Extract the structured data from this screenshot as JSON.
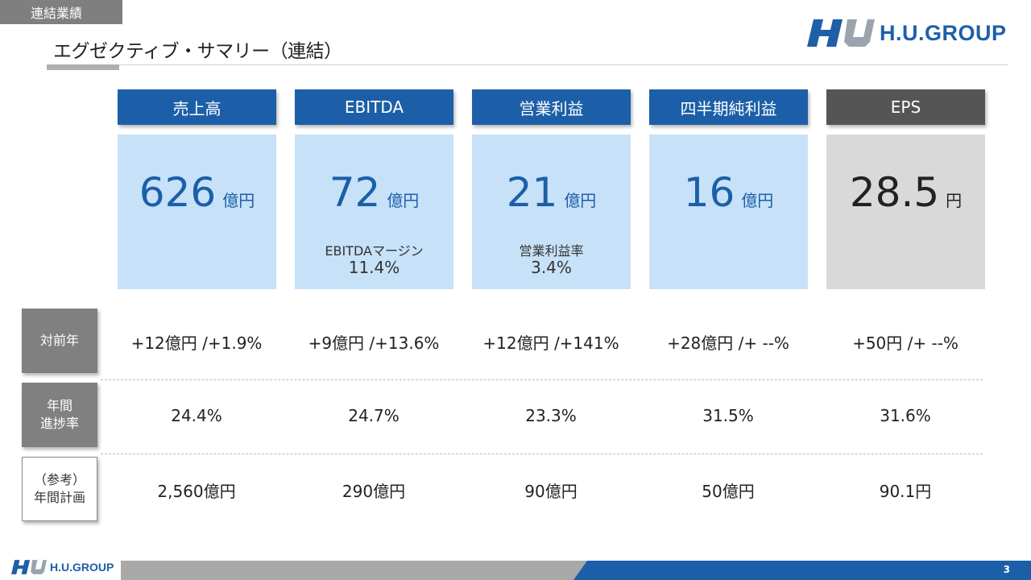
{
  "header": {
    "section_tag": "連結業績",
    "title": "エグゼクティブ・サマリー（連結）",
    "logo_text": "H.U.GROUP"
  },
  "columns": [
    {
      "header": "売上高",
      "value": "626",
      "unit": "億円",
      "sub_label": "",
      "sub_value": ""
    },
    {
      "header": "EBITDA",
      "value": "72",
      "unit": "億円",
      "sub_label": "EBITDAマージン",
      "sub_value": "11.4%"
    },
    {
      "header": "営業利益",
      "value": "21",
      "unit": "億円",
      "sub_label": "営業利益率",
      "sub_value": "3.4%"
    },
    {
      "header": "四半期純利益",
      "value": "16",
      "unit": "億円",
      "sub_label": "",
      "sub_value": ""
    },
    {
      "header": "EPS",
      "value": "28.5",
      "unit": "円",
      "sub_label": "",
      "sub_value": ""
    }
  ],
  "rows": [
    {
      "label_line1": "対前年",
      "label_line2": "",
      "cells": [
        "+12億円 /+1.9%",
        "+9億円 /+13.6%",
        "+12億円 /+141%",
        "+28億円 /+ --%",
        "+50円 /+ --%"
      ]
    },
    {
      "label_line1": "年間",
      "label_line2": "進捗率",
      "cells": [
        "24.4%",
        "24.7%",
        "23.3%",
        "31.5%",
        "31.6%"
      ]
    },
    {
      "label_line1": "（参考）",
      "label_line2": "年間計画",
      "cells": [
        "2,560億円",
        "290億円",
        "90億円",
        "50億円",
        "90.1円"
      ]
    }
  ],
  "footer": {
    "logo_text": "H.U.GROUP",
    "page_number": "3"
  },
  "colors": {
    "brand_blue": "#1c5fa8",
    "light_blue": "#c7e1f8",
    "grey": "#808080"
  }
}
